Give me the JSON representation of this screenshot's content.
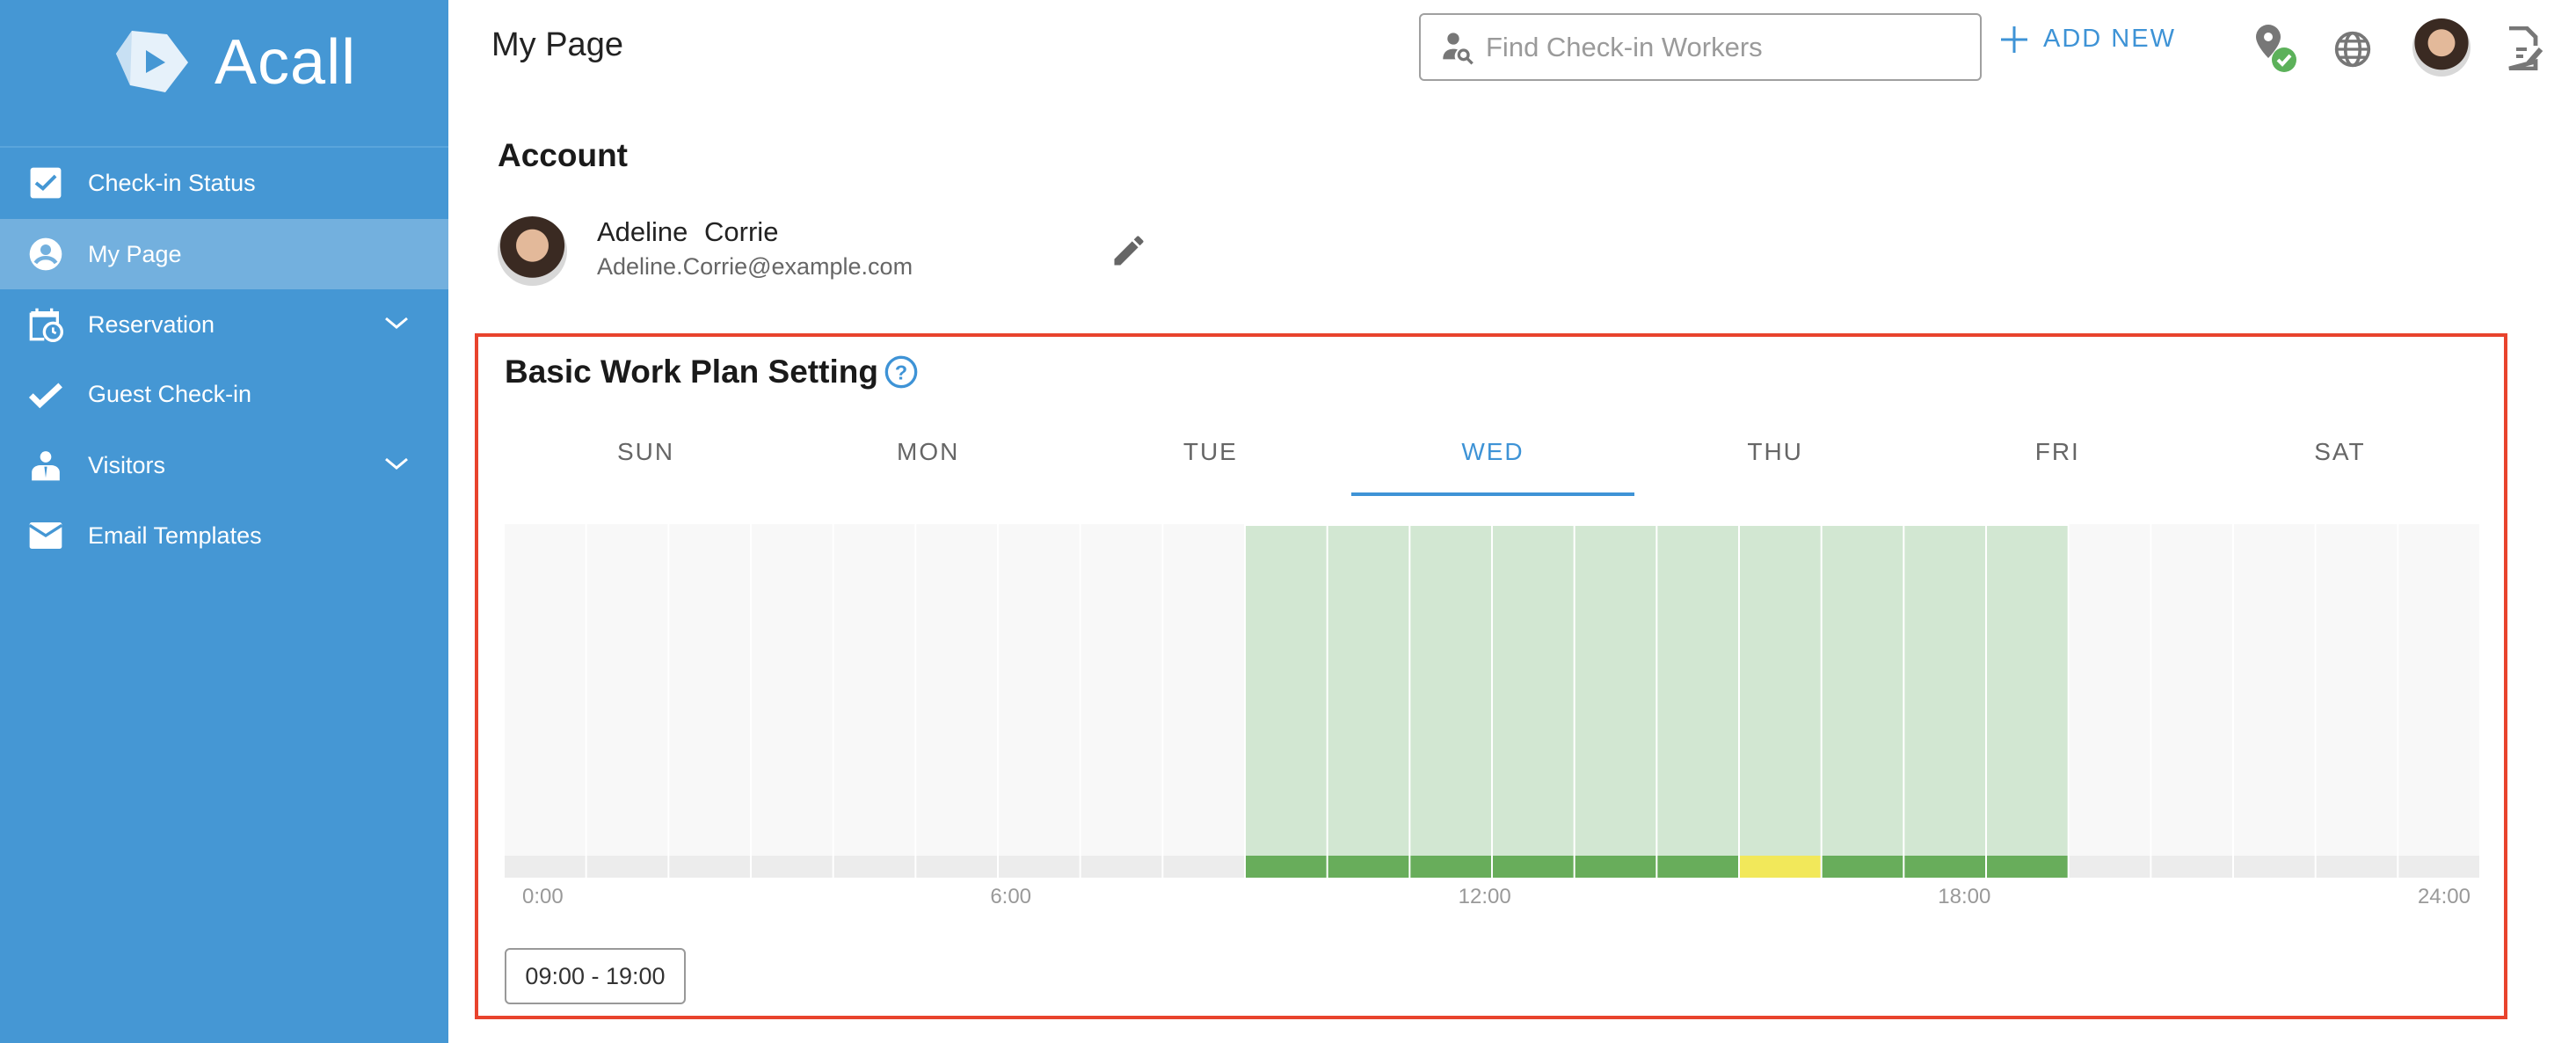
{
  "app": {
    "name": "Acall"
  },
  "sidebar": {
    "items": [
      {
        "label": "Check-in Status",
        "icon": "checkbox-icon",
        "active": false,
        "expandable": false
      },
      {
        "label": "My Page",
        "icon": "user-circle-icon",
        "active": true,
        "expandable": false
      },
      {
        "label": "Reservation",
        "icon": "calendar-clock-icon",
        "active": false,
        "expandable": true
      },
      {
        "label": "Guest Check-in",
        "icon": "check-icon",
        "active": false,
        "expandable": false
      },
      {
        "label": "Visitors",
        "icon": "visitor-icon",
        "active": false,
        "expandable": true
      },
      {
        "label": "Email Templates",
        "icon": "envelope-icon",
        "active": false,
        "expandable": false
      }
    ]
  },
  "header": {
    "title": "My Page",
    "search_placeholder": "Find Check-in Workers",
    "add_new": "ADD NEW"
  },
  "account": {
    "heading": "Account",
    "name": "Adeline Corrie",
    "email": "Adeline.Corrie@example.com"
  },
  "work_plan": {
    "heading": "Basic Work Plan Setting",
    "days": [
      "SUN",
      "MON",
      "TUE",
      "WED",
      "THU",
      "FRI",
      "SAT"
    ],
    "selected_day": "WED",
    "range_label": "09:00 - 19:00"
  },
  "chart_data": {
    "type": "heatmap",
    "title": "Basic Work Plan Setting",
    "hours": 24,
    "work_start": 9,
    "work_end": 19,
    "highlight_hours": [
      15
    ],
    "tick_labels": [
      "0:00",
      "6:00",
      "12:00",
      "18:00",
      "24:00"
    ],
    "colors": {
      "work_light": "#d2e7d2",
      "work": "#68ad5b",
      "highlight": "#f2e85a",
      "off": "#f8f8f8",
      "off_bar": "#ececec"
    }
  },
  "colors": {
    "sidebar": "#4597d4",
    "accent": "#3e93d6",
    "annotation": "#e8432d"
  }
}
